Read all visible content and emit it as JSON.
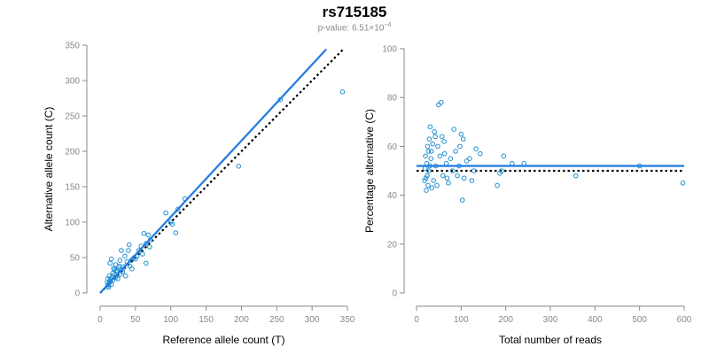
{
  "header": {
    "title": "rs715185",
    "pvalue_prefix": "p-value: 6.51×10",
    "pvalue_exponent": "−4"
  },
  "colors": {
    "fit_line": "#1f7ae0",
    "points": "#1e90d0",
    "reference_line": "#000000",
    "axis": "#888888"
  },
  "chart_data": [
    {
      "type": "scatter",
      "xlabel": "Reference allele count (T)",
      "ylabel": "Alternative allele count (C)",
      "xlim": [
        0,
        350
      ],
      "ylim": [
        0,
        350
      ],
      "xticks": [
        "0",
        "50",
        "100",
        "150",
        "200",
        "250",
        "300",
        "350"
      ],
      "yticks": [
        "0",
        "50",
        "100",
        "150",
        "200",
        "250",
        "300",
        "350"
      ],
      "fit_line": {
        "style": "solid",
        "x": [
          0,
          320
        ],
        "y": [
          0,
          344
        ]
      },
      "reference_line": {
        "style": "dotted",
        "x": [
          0,
          345
        ],
        "y": [
          0,
          345
        ]
      },
      "points": [
        {
          "x": 343,
          "y": 284
        },
        {
          "x": 255,
          "y": 273
        },
        {
          "x": 196,
          "y": 179
        },
        {
          "x": 120,
          "y": 133
        },
        {
          "x": 110,
          "y": 118
        },
        {
          "x": 107,
          "y": 85
        },
        {
          "x": 93,
          "y": 113
        },
        {
          "x": 100,
          "y": 100
        },
        {
          "x": 102,
          "y": 97
        },
        {
          "x": 68,
          "y": 82
        },
        {
          "x": 71,
          "y": 75
        },
        {
          "x": 62,
          "y": 84
        },
        {
          "x": 65,
          "y": 70
        },
        {
          "x": 70,
          "y": 65
        },
        {
          "x": 58,
          "y": 66
        },
        {
          "x": 55,
          "y": 60
        },
        {
          "x": 60,
          "y": 55
        },
        {
          "x": 52,
          "y": 52
        },
        {
          "x": 50,
          "y": 48
        },
        {
          "x": 48,
          "y": 50
        },
        {
          "x": 65,
          "y": 42
        },
        {
          "x": 41,
          "y": 68
        },
        {
          "x": 40,
          "y": 60
        },
        {
          "x": 44,
          "y": 46
        },
        {
          "x": 38,
          "y": 44
        },
        {
          "x": 35,
          "y": 52
        },
        {
          "x": 30,
          "y": 60
        },
        {
          "x": 28,
          "y": 46
        },
        {
          "x": 33,
          "y": 37
        },
        {
          "x": 30,
          "y": 32
        },
        {
          "x": 26,
          "y": 36
        },
        {
          "x": 22,
          "y": 40
        },
        {
          "x": 24,
          "y": 30
        },
        {
          "x": 20,
          "y": 33
        },
        {
          "x": 20,
          "y": 26
        },
        {
          "x": 18,
          "y": 28
        },
        {
          "x": 16,
          "y": 48
        },
        {
          "x": 14,
          "y": 42
        },
        {
          "x": 17,
          "y": 22
        },
        {
          "x": 15,
          "y": 20
        },
        {
          "x": 14,
          "y": 17
        },
        {
          "x": 13,
          "y": 14
        },
        {
          "x": 12,
          "y": 12
        },
        {
          "x": 11,
          "y": 10
        },
        {
          "x": 10,
          "y": 15
        },
        {
          "x": 12,
          "y": 8
        },
        {
          "x": 13,
          "y": 24
        },
        {
          "x": 16,
          "y": 12
        },
        {
          "x": 18,
          "y": 18
        },
        {
          "x": 22,
          "y": 22
        },
        {
          "x": 25,
          "y": 20
        },
        {
          "x": 28,
          "y": 26
        },
        {
          "x": 32,
          "y": 30
        },
        {
          "x": 36,
          "y": 24
        },
        {
          "x": 42,
          "y": 38
        },
        {
          "x": 45,
          "y": 34
        },
        {
          "x": 27,
          "y": 38
        },
        {
          "x": 23,
          "y": 32
        },
        {
          "x": 19,
          "y": 35
        },
        {
          "x": 11,
          "y": 20
        }
      ]
    },
    {
      "type": "scatter",
      "xlabel": "Total number of reads",
      "ylabel": "Percentage alternative (C)",
      "xlim": [
        0,
        630
      ],
      "ylim": [
        0,
        100
      ],
      "xticks": [
        "0",
        "100",
        "200",
        "300",
        "400",
        "500",
        "600"
      ],
      "yticks": [
        "0",
        "20",
        "40",
        "60",
        "80",
        "100"
      ],
      "fit_line": {
        "style": "solid",
        "y": 52
      },
      "reference_line": {
        "style": "dotted",
        "y": 50
      },
      "points": [
        {
          "x": 627,
          "y": 45
        },
        {
          "x": 525,
          "y": 52
        },
        {
          "x": 375,
          "y": 48
        },
        {
          "x": 253,
          "y": 53
        },
        {
          "x": 225,
          "y": 53
        },
        {
          "x": 205,
          "y": 56
        },
        {
          "x": 200,
          "y": 50
        },
        {
          "x": 196,
          "y": 49
        },
        {
          "x": 190,
          "y": 44
        },
        {
          "x": 150,
          "y": 57
        },
        {
          "x": 140,
          "y": 59
        },
        {
          "x": 130,
          "y": 46
        },
        {
          "x": 125,
          "y": 55
        },
        {
          "x": 118,
          "y": 54
        },
        {
          "x": 112,
          "y": 47
        },
        {
          "x": 108,
          "y": 38
        },
        {
          "x": 105,
          "y": 65
        },
        {
          "x": 102,
          "y": 60
        },
        {
          "x": 100,
          "y": 52
        },
        {
          "x": 96,
          "y": 48
        },
        {
          "x": 92,
          "y": 58
        },
        {
          "x": 88,
          "y": 67
        },
        {
          "x": 85,
          "y": 50
        },
        {
          "x": 80,
          "y": 55
        },
        {
          "x": 75,
          "y": 45
        },
        {
          "x": 70,
          "y": 53
        },
        {
          "x": 65,
          "y": 62
        },
        {
          "x": 62,
          "y": 48
        },
        {
          "x": 60,
          "y": 64
        },
        {
          "x": 58,
          "y": 78
        },
        {
          "x": 55,
          "y": 56
        },
        {
          "x": 52,
          "y": 77
        },
        {
          "x": 50,
          "y": 60
        },
        {
          "x": 48,
          "y": 44
        },
        {
          "x": 45,
          "y": 52
        },
        {
          "x": 42,
          "y": 66
        },
        {
          "x": 40,
          "y": 46
        },
        {
          "x": 38,
          "y": 61
        },
        {
          "x": 36,
          "y": 43
        },
        {
          "x": 34,
          "y": 55
        },
        {
          "x": 32,
          "y": 68
        },
        {
          "x": 30,
          "y": 63
        },
        {
          "x": 29,
          "y": 50
        },
        {
          "x": 28,
          "y": 58
        },
        {
          "x": 27,
          "y": 44
        },
        {
          "x": 26,
          "y": 60
        },
        {
          "x": 25,
          "y": 48
        },
        {
          "x": 24,
          "y": 53
        },
        {
          "x": 23,
          "y": 42
        },
        {
          "x": 22,
          "y": 47
        },
        {
          "x": 21,
          "y": 56
        },
        {
          "x": 20,
          "y": 51
        },
        {
          "x": 19,
          "y": 46
        },
        {
          "x": 44,
          "y": 64
        },
        {
          "x": 35,
          "y": 58
        },
        {
          "x": 31,
          "y": 52
        },
        {
          "x": 66,
          "y": 57
        },
        {
          "x": 72,
          "y": 47
        },
        {
          "x": 110,
          "y": 63
        },
        {
          "x": 135,
          "y": 50
        }
      ]
    }
  ]
}
